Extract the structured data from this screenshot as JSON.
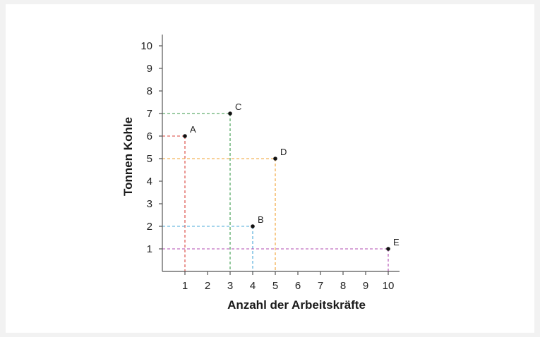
{
  "chart_data": {
    "type": "scatter",
    "xlabel": "Anzahl der Arbeitskräfte",
    "ylabel": "Tonnen Kohle",
    "xlim": [
      0,
      10
    ],
    "ylim": [
      0,
      10
    ],
    "x_ticks": [
      "1",
      "2",
      "3",
      "4",
      "5",
      "6",
      "7",
      "8",
      "9",
      "10"
    ],
    "y_ticks": [
      "1",
      "2",
      "3",
      "4",
      "5",
      "6",
      "7",
      "8",
      "9",
      "10"
    ],
    "grid": false,
    "points": [
      {
        "label": "A",
        "x": 1,
        "y": 6,
        "guide_color": "#d9413a"
      },
      {
        "label": "B",
        "x": 4,
        "y": 2,
        "guide_color": "#4aa8d8"
      },
      {
        "label": "C",
        "x": 3,
        "y": 7,
        "guide_color": "#3a9a4a"
      },
      {
        "label": "D",
        "x": 5,
        "y": 5,
        "guide_color": "#f0a030"
      },
      {
        "label": "E",
        "x": 10,
        "y": 1,
        "guide_color": "#b048b0"
      }
    ]
  }
}
